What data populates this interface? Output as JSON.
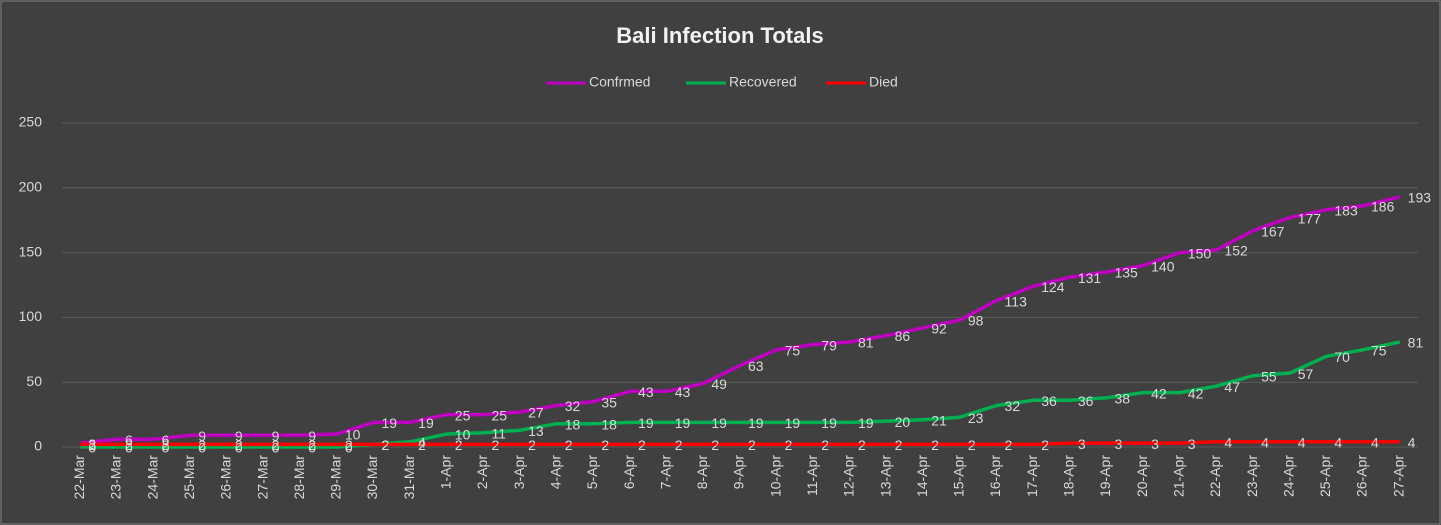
{
  "chart_data": {
    "type": "line",
    "title": "Bali Infection Totals",
    "categories": [
      "22-Mar",
      "23-Mar",
      "24-Mar",
      "25-Mar",
      "26-Mar",
      "27-Mar",
      "28-Mar",
      "29-Mar",
      "30-Mar",
      "31-Mar",
      "1-Apr",
      "2-Apr",
      "3-Apr",
      "4-Apr",
      "5-Apr",
      "6-Apr",
      "7-Apr",
      "8-Apr",
      "9-Apr",
      "10-Apr",
      "11-Apr",
      "12-Apr",
      "13-Apr",
      "14-Apr",
      "15-Apr",
      "16-Apr",
      "17-Apr",
      "18-Apr",
      "19-Apr",
      "20-Apr",
      "21-Apr",
      "22-Apr",
      "23-Apr",
      "24-Apr",
      "25-Apr",
      "26-Apr",
      "27-Apr"
    ],
    "series": [
      {
        "name": "Confrmed",
        "color": "#c000c0",
        "values": [
          3,
          6,
          6,
          9,
          9,
          9,
          9,
          10,
          19,
          19,
          25,
          25,
          27,
          32,
          35,
          43,
          43,
          49,
          63,
          75,
          79,
          81,
          86,
          92,
          98,
          113,
          124,
          131,
          135,
          140,
          150,
          152,
          167,
          177,
          183,
          186,
          193
        ]
      },
      {
        "name": "Recovered",
        "color": "#00b050",
        "values": [
          0,
          0,
          0,
          0,
          0,
          0,
          0,
          0,
          2,
          4,
          10,
          11,
          13,
          18,
          18,
          19,
          19,
          19,
          19,
          19,
          19,
          19,
          20,
          21,
          23,
          32,
          36,
          36,
          38,
          42,
          42,
          47,
          55,
          57,
          70,
          75,
          81
        ]
      },
      {
        "name": "Died",
        "color": "#ff0000",
        "values": [
          2,
          2,
          2,
          2,
          2,
          2,
          2,
          2,
          2,
          2,
          2,
          2,
          2,
          2,
          2,
          2,
          2,
          2,
          2,
          2,
          2,
          2,
          2,
          2,
          2,
          2,
          2,
          3,
          3,
          3,
          3,
          4,
          4,
          4,
          4,
          4,
          4
        ]
      }
    ],
    "ylim": [
      0,
      250
    ],
    "yticks": [
      0,
      50,
      100,
      150,
      200,
      250
    ],
    "grid": true,
    "legend": "top",
    "data_labels": true
  }
}
